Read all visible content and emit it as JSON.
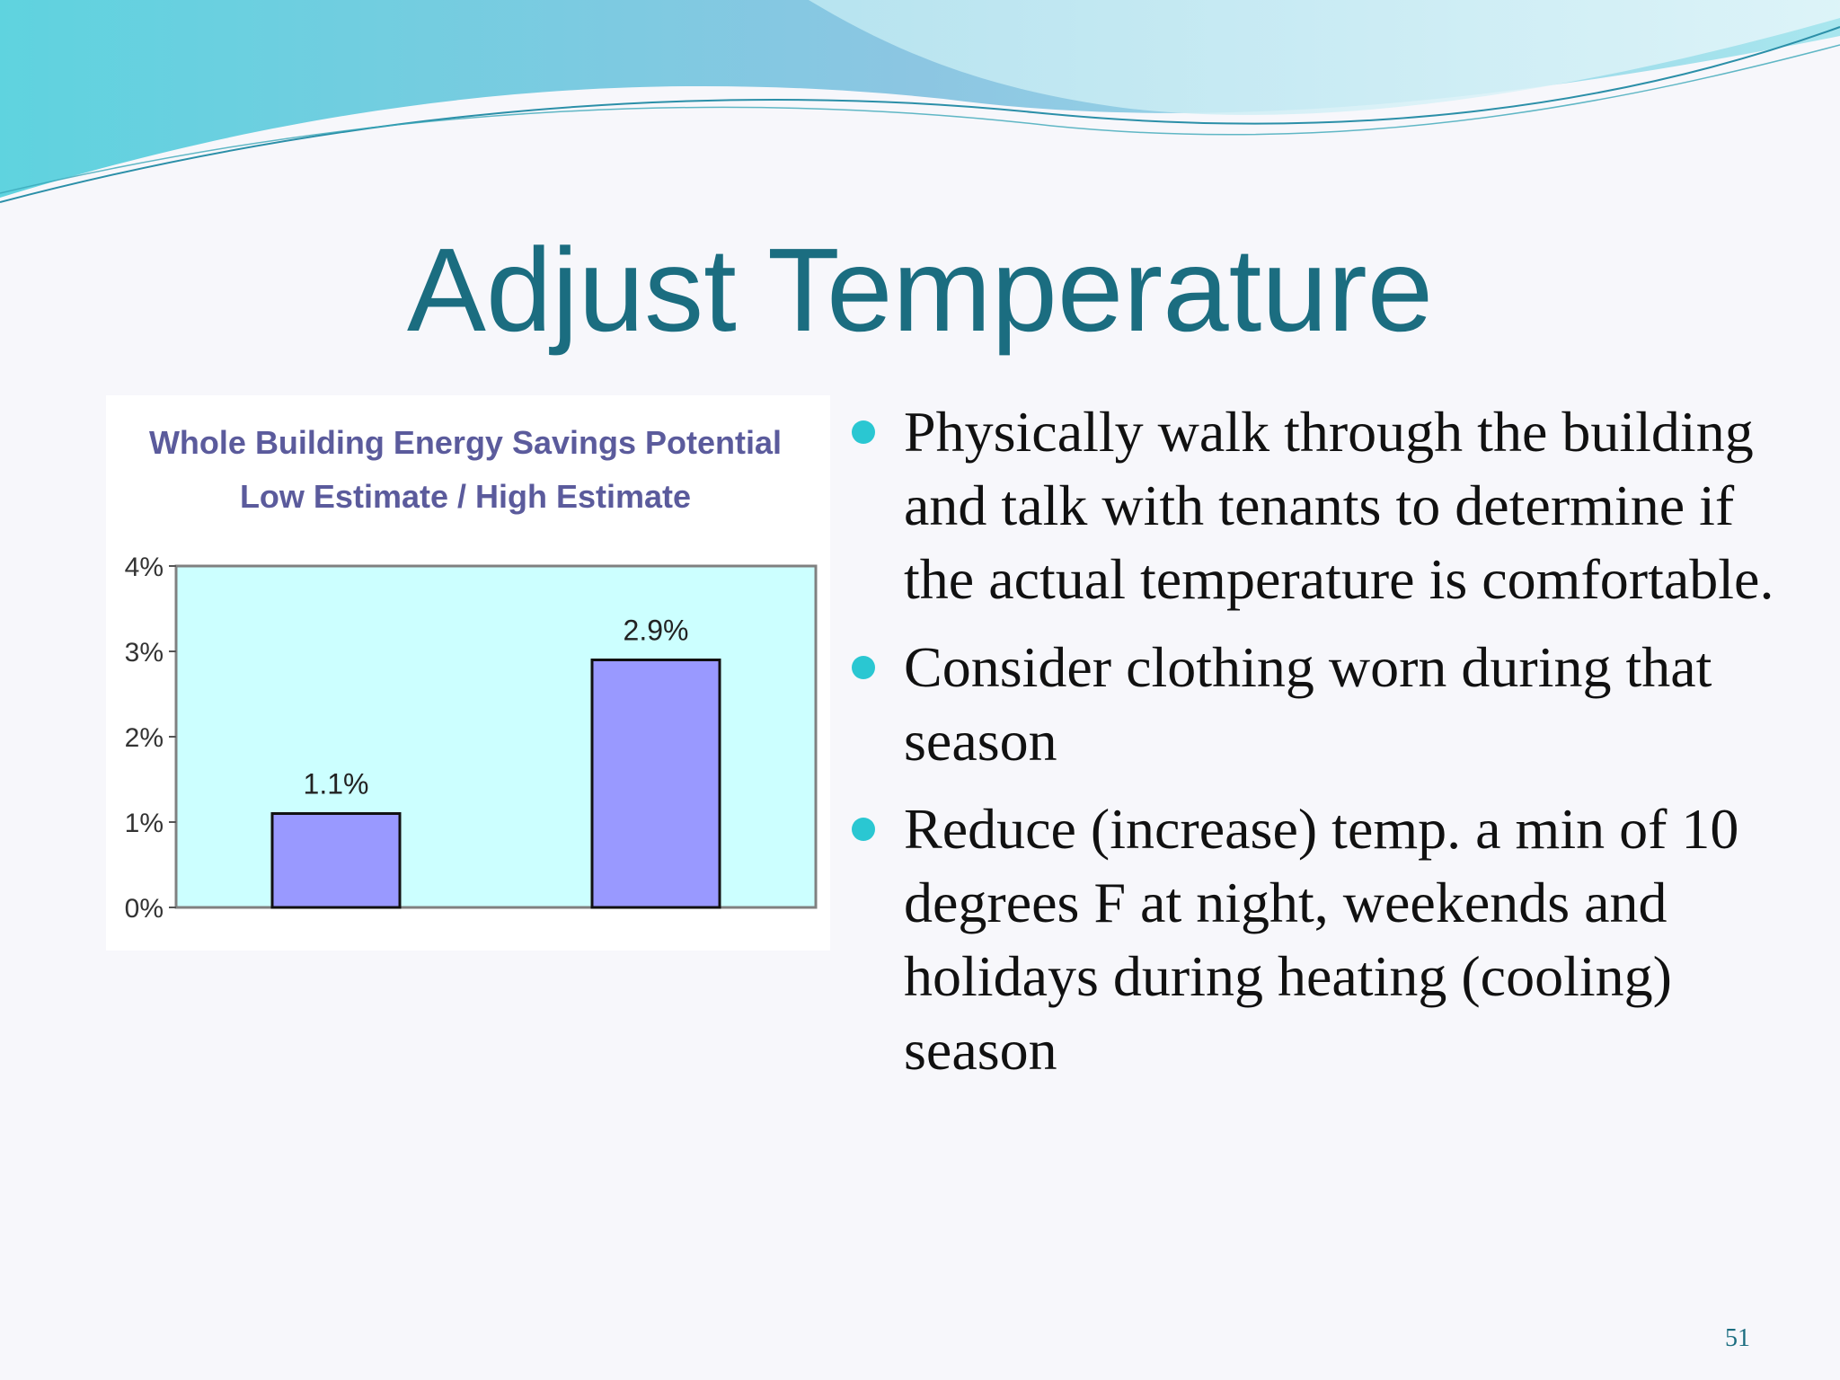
{
  "slide": {
    "title": "Adjust Temperature",
    "page_number": "51",
    "bullets": [
      "Physically walk through the building and talk with tenants to determine if the actual temperature is comfortable.",
      "Consider clothing worn during that season",
      "Reduce (increase) temp. a min of 10 degrees F at night, weekends and holidays during heating (cooling) season"
    ]
  },
  "colors": {
    "title": "#1b6d80",
    "bullet": "#2ac7d2",
    "chart_bg": "#ccffff",
    "bar_fill": "#9999ff",
    "chart_title": "#5b5b9c"
  },
  "chart_data": {
    "type": "bar",
    "title_lines": [
      "Whole Building Energy Savings Potential",
      "Low Estimate / High Estimate"
    ],
    "categories": [
      "",
      ""
    ],
    "values": [
      1.1,
      2.9
    ],
    "data_labels": [
      "1.1%",
      "2.9%"
    ],
    "y_ticks": [
      "0%",
      "1%",
      "2%",
      "3%",
      "4%"
    ],
    "ylim": [
      0,
      4
    ],
    "xlabel": "",
    "ylabel": "",
    "grid": false,
    "legend": "none"
  }
}
